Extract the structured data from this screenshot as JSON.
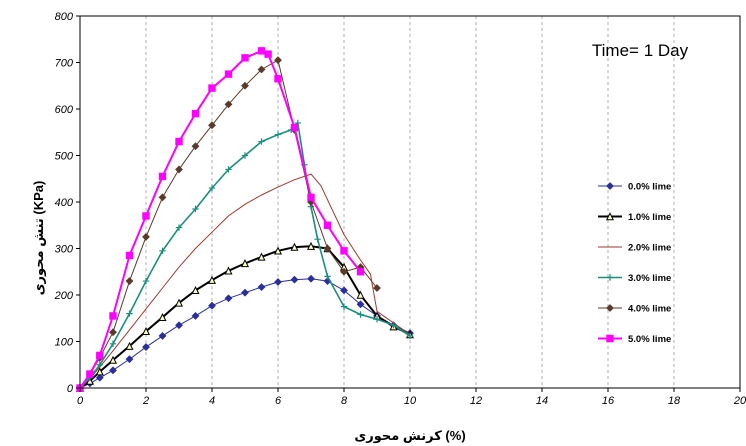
{
  "chart_data": {
    "type": "line",
    "xlabel": "کرنش محوری (%)",
    "ylabel": "تنش محوری (KPa)",
    "annotation": "Time= 1 Day",
    "xlim": [
      0,
      20
    ],
    "ylim": [
      0,
      800
    ],
    "x_ticks": [
      0,
      2,
      4,
      6,
      8,
      10,
      12,
      14,
      16,
      18,
      20
    ],
    "y_ticks": [
      0,
      100,
      200,
      300,
      400,
      500,
      600,
      700,
      800
    ],
    "grid": true,
    "grid_style": "vertical dashed",
    "legend_position": "right",
    "series": [
      {
        "name": "0.0% lime",
        "color": "#2b2f9a",
        "marker": "diamond",
        "line_width": 1,
        "x": [
          0,
          0.3,
          0.6,
          1.0,
          1.5,
          2.0,
          2.5,
          3.0,
          3.5,
          4.0,
          4.5,
          5.0,
          5.5,
          6.0,
          6.5,
          7.0,
          7.5,
          8.0,
          8.5,
          9.0,
          9.5,
          10.0
        ],
        "y": [
          0,
          10,
          22,
          38,
          62,
          88,
          112,
          135,
          155,
          177,
          193,
          205,
          217,
          228,
          233,
          235,
          230,
          210,
          180,
          155,
          135,
          118
        ]
      },
      {
        "name": "1.0% lime",
        "color": "#000000",
        "marker": "triangle",
        "line_width": 2,
        "x": [
          0,
          0.3,
          0.6,
          1.0,
          1.5,
          2.0,
          2.5,
          3.0,
          3.5,
          4.0,
          4.5,
          5.0,
          5.5,
          6.0,
          6.5,
          7.0,
          7.5,
          8.0,
          8.5,
          9.0,
          9.5,
          10.0
        ],
        "y": [
          0,
          15,
          35,
          60,
          90,
          122,
          152,
          183,
          210,
          232,
          252,
          268,
          282,
          295,
          303,
          305,
          300,
          260,
          200,
          155,
          132,
          115
        ]
      },
      {
        "name": "2.0% lime",
        "color": "#9c3a2a",
        "marker": "none",
        "line_width": 1,
        "x": [
          0,
          0.3,
          0.6,
          1.0,
          1.5,
          2.0,
          2.5,
          3.0,
          3.5,
          4.0,
          4.5,
          5.0,
          5.5,
          6.0,
          6.5,
          7.0,
          7.3,
          7.6,
          8.0,
          8.5,
          8.8,
          9.0,
          9.5,
          10.0
        ],
        "y": [
          0,
          20,
          45,
          80,
          125,
          170,
          215,
          260,
          300,
          335,
          370,
          395,
          415,
          432,
          448,
          460,
          435,
          390,
          330,
          275,
          245,
          165,
          140,
          115
        ]
      },
      {
        "name": "3.0% lime",
        "color": "#1a8f7c",
        "marker": "plus",
        "line_width": 1.6,
        "x": [
          0,
          0.3,
          0.6,
          1.0,
          1.5,
          2.0,
          2.5,
          3.0,
          3.5,
          4.0,
          4.5,
          5.0,
          5.5,
          6.0,
          6.4,
          6.6,
          6.8,
          7.0,
          7.2,
          7.5,
          8.0,
          8.5,
          9.0,
          9.5,
          10.0
        ],
        "y": [
          0,
          22,
          50,
          95,
          160,
          230,
          295,
          345,
          385,
          430,
          470,
          500,
          530,
          545,
          555,
          570,
          480,
          390,
          320,
          240,
          175,
          158,
          148,
          135,
          112
        ]
      },
      {
        "name": "4.0% lime",
        "color": "#5a3a2a",
        "marker": "diamond",
        "line_width": 1,
        "x": [
          0,
          0.3,
          0.6,
          1.0,
          1.5,
          2.0,
          2.5,
          3.0,
          3.5,
          4.0,
          4.5,
          5.0,
          5.5,
          6.0,
          6.5,
          7.0,
          7.5,
          8.0,
          8.5,
          9.0
        ],
        "y": [
          0,
          30,
          65,
          120,
          230,
          325,
          410,
          470,
          520,
          565,
          610,
          650,
          685,
          705,
          555,
          400,
          300,
          250,
          260,
          215
        ]
      },
      {
        "name": "5.0% lime",
        "color": "#ff00ff",
        "marker": "square",
        "line_width": 2,
        "x": [
          0,
          0.3,
          0.6,
          1.0,
          1.5,
          2.0,
          2.5,
          3.0,
          3.5,
          4.0,
          4.5,
          5.0,
          5.5,
          5.7,
          6.0,
          6.5,
          7.0,
          7.5,
          8.0,
          8.5
        ],
        "y": [
          0,
          30,
          70,
          155,
          285,
          370,
          455,
          530,
          590,
          645,
          675,
          710,
          725,
          718,
          665,
          560,
          410,
          350,
          295,
          250
        ]
      }
    ]
  }
}
